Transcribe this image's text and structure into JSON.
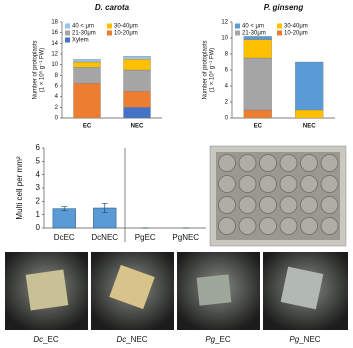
{
  "chart_data": [
    {
      "type": "stacked_bar",
      "title": "D. carota",
      "y_label": [
        "Number of protoplasts",
        "(1 × 10⁵ g⁻¹ FW)"
      ],
      "categories": [
        "EC",
        "NEC"
      ],
      "series": [
        {
          "name": "40 < μm",
          "color": "#9dc3e6",
          "values": [
            0.5,
            0.6
          ]
        },
        {
          "name": "30-40μm",
          "color": "#ffc000",
          "values": [
            1.0,
            2.0
          ]
        },
        {
          "name": "21-30μm",
          "color": "#a5a5a5",
          "values": [
            3.0,
            4.0
          ]
        },
        {
          "name": "10-20μm",
          "color": "#ed7d31",
          "values": [
            6.5,
            3.0
          ]
        },
        {
          "name": "Xylem",
          "color": "#4472c4",
          "values": [
            0,
            2.0
          ]
        }
      ],
      "ylim": [
        0,
        18
      ],
      "yticks": [
        0,
        2,
        4,
        6,
        8,
        10,
        12,
        14,
        16,
        18
      ]
    },
    {
      "type": "stacked_bar",
      "title": "P. ginseng",
      "y_label": [
        "Number of protoplasts",
        "(1 × 10⁵ g⁻¹ FW)"
      ],
      "categories": [
        "EC",
        "NEC"
      ],
      "series": [
        {
          "name": "40 < μm",
          "color": "#5b9bd5",
          "values": [
            0.4,
            6.0
          ]
        },
        {
          "name": "30-40μm",
          "color": "#ffc000",
          "values": [
            2.3,
            1.0
          ]
        },
        {
          "name": "21-30μm",
          "color": "#a5a5a5",
          "values": [
            6.5,
            0
          ]
        },
        {
          "name": "10-20μm",
          "color": "#ed7d31",
          "values": [
            1.0,
            0
          ]
        }
      ],
      "ylim": [
        0,
        12
      ],
      "yticks": [
        0,
        2,
        4,
        6,
        8,
        10,
        12
      ]
    },
    {
      "type": "bar",
      "y_label": [
        "Multi cell per mm²"
      ],
      "categories": [
        "DcEC",
        "DcNEC",
        "PgEC",
        "PgNEC"
      ],
      "values": [
        1.45,
        1.5,
        0,
        0
      ],
      "errors": [
        0.15,
        0.35,
        0,
        0
      ],
      "color": "#5b9bd5",
      "ylim": [
        0,
        6
      ],
      "yticks": [
        0,
        1,
        2,
        3,
        4,
        5,
        6
      ]
    }
  ],
  "photos": {
    "labels": [
      {
        "species": "Dc",
        "suffix": "_EC"
      },
      {
        "species": "Dc",
        "suffix": "_NEC"
      },
      {
        "species": "Pg",
        "suffix": "_EC"
      },
      {
        "species": "Pg",
        "suffix": "_NEC"
      }
    ]
  }
}
